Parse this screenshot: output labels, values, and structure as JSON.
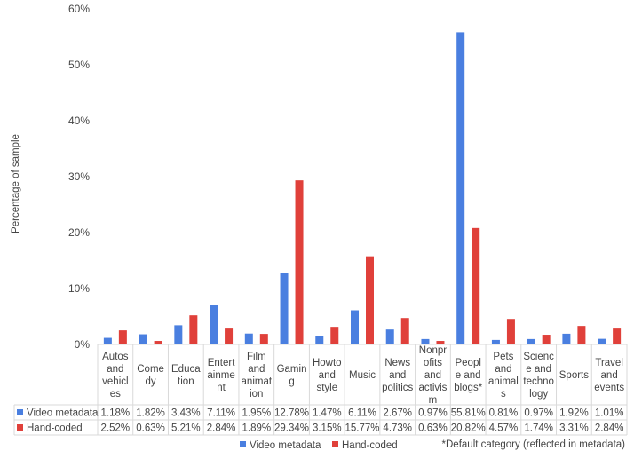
{
  "chart_data": {
    "type": "bar",
    "title": "",
    "xlabel": "",
    "ylabel": "Percentage of sample",
    "ylim": [
      0,
      60
    ],
    "yticks": [
      "0%",
      "10%",
      "20%",
      "30%",
      "40%",
      "50%",
      "60%"
    ],
    "categories": [
      [
        "Autos",
        "and",
        "vehicl",
        "es"
      ],
      [
        "Come",
        "dy"
      ],
      [
        "Educa",
        "tion"
      ],
      [
        "Entert",
        "ainme",
        "nt"
      ],
      [
        "Film",
        "and",
        "animat",
        "ion"
      ],
      [
        "Gamin",
        "g"
      ],
      [
        "Howto",
        "and",
        "style"
      ],
      [
        "Music"
      ],
      [
        "News",
        "and",
        "politics"
      ],
      [
        "Nonpr",
        "ofits",
        "and",
        "activis",
        "m"
      ],
      [
        "Peopl",
        "e and",
        "blogs*"
      ],
      [
        "Pets",
        "and",
        "animal",
        "s"
      ],
      [
        "Scienc",
        "e and",
        "techno",
        "logy"
      ],
      [
        "Sports"
      ],
      [
        "Travel",
        "and",
        "events"
      ]
    ],
    "series": [
      {
        "name": "Video metadata",
        "color": "#4a7fe0",
        "values": [
          1.18,
          1.82,
          3.43,
          7.11,
          1.95,
          12.78,
          1.47,
          6.11,
          2.67,
          0.97,
          55.81,
          0.81,
          0.97,
          1.92,
          1.01
        ],
        "labels": [
          "1.18%",
          "1.82%",
          "3.43%",
          "7.11%",
          "1.95%",
          "12.78%",
          "1.47%",
          "6.11%",
          "2.67%",
          "0.97%",
          "55.81%",
          "0.81%",
          "0.97%",
          "1.92%",
          "1.01%"
        ]
      },
      {
        "name": "Hand-coded",
        "color": "#e0403a",
        "values": [
          2.52,
          0.63,
          5.21,
          2.84,
          1.89,
          29.34,
          3.15,
          15.77,
          4.73,
          0.63,
          20.82,
          4.57,
          1.74,
          3.31,
          2.84
        ],
        "labels": [
          "2.52%",
          "0.63%",
          "5.21%",
          "2.84%",
          "1.89%",
          "29.34%",
          "3.15%",
          "15.77%",
          "4.73%",
          "0.63%",
          "20.82%",
          "4.57%",
          "1.74%",
          "3.31%",
          "2.84%"
        ]
      }
    ],
    "legend_position": "bottom",
    "grid": false
  },
  "footnote": "*Default category (reflected in metadata)"
}
